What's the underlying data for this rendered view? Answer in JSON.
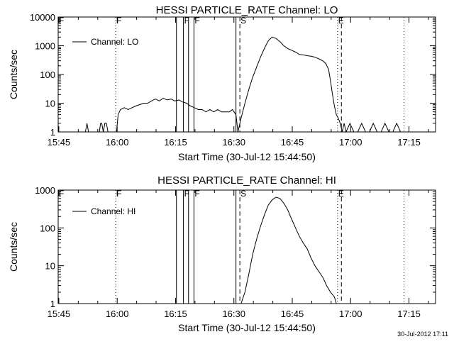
{
  "page": {
    "footer_timestamp": "30-Jul-2012 17:11"
  },
  "chart_data": [
    {
      "type": "line",
      "title": "HESSI PARTICLE_RATE Channel: LO",
      "xlabel": "Start Time (30-Jul-12 15:44:50)",
      "ylabel": "Counts/sec",
      "x_unit": "minutes after 15:44:50",
      "xlim": [
        0,
        97
      ],
      "ylim": [
        1,
        10000
      ],
      "yscale": "log",
      "x_ticks": [
        {
          "label": "15:45",
          "value": 0.17
        },
        {
          "label": "16:00",
          "value": 15.17
        },
        {
          "label": "16:15",
          "value": 30.17
        },
        {
          "label": "16:30",
          "value": 45.17
        },
        {
          "label": "16:45",
          "value": 60.17
        },
        {
          "label": "17:00",
          "value": 75.17
        },
        {
          "label": "17:15",
          "value": 90.17
        }
      ],
      "y_ticks": [
        {
          "label": "1",
          "value": 1
        },
        {
          "label": "10",
          "value": 10
        },
        {
          "label": "100",
          "value": 100
        },
        {
          "label": "1000",
          "value": 1000
        },
        {
          "label": "10000",
          "value": 10000
        }
      ],
      "legend": {
        "position": "top-left",
        "entries": [
          "Channel: LO"
        ]
      },
      "grid": false,
      "markers": [
        {
          "x": 0.0,
          "style": "solid",
          "label": "F"
        },
        {
          "x": 14.8,
          "style": "dotted",
          "label": "F"
        },
        {
          "x": 30.4,
          "style": "solid",
          "label": ""
        },
        {
          "x": 32.2,
          "style": "solid",
          "label": "F"
        },
        {
          "x": 33.5,
          "style": "solid",
          "label": ""
        },
        {
          "x": 34.9,
          "style": "solid",
          "label": "F"
        },
        {
          "x": 45.7,
          "style": "solid",
          "label": ""
        },
        {
          "x": 46.7,
          "style": "dashed",
          "label": "S"
        },
        {
          "x": 71.8,
          "style": "dotted",
          "label": "E"
        },
        {
          "x": 72.8,
          "style": "dashed",
          "label": ""
        },
        {
          "x": 88.9,
          "style": "dotted",
          "label": ""
        }
      ],
      "series": [
        {
          "name": "Channel: LO",
          "x": [
            7.0,
            7.4,
            7.8,
            10.6,
            10.9,
            11.2,
            11.6,
            12.0,
            12.4,
            12.8,
            13.2,
            14.0,
            14.6,
            15.0,
            15.4,
            16.0,
            17.0,
            18.0,
            19.0,
            20.0,
            21.0,
            22.0,
            23.0,
            24.0,
            25.0,
            26.0,
            27.0,
            28.0,
            29.0,
            30.0,
            31.0,
            32.0,
            33.0,
            34.0,
            35.0,
            36.0,
            37.0,
            38.0,
            39.0,
            40.0,
            41.0,
            42.0,
            43.0,
            44.0,
            44.8,
            45.2,
            45.7,
            46.2,
            47.0,
            48.0,
            49.0,
            50.0,
            51.0,
            52.0,
            53.0,
            54.0,
            55.0,
            56.0,
            57.0,
            58.0,
            59.0,
            60.0,
            61.0,
            62.0,
            63.0,
            64.0,
            65.0,
            66.0,
            67.0,
            68.0,
            68.8,
            69.5,
            70.0,
            70.5,
            71.0,
            71.5,
            72.0,
            72.5,
            73.0,
            73.5,
            74.0,
            75.0,
            76.0,
            77.0,
            78.0,
            79.0,
            80.0,
            81.0,
            82.0,
            83.0,
            84.0,
            85.0,
            86.0,
            87.0,
            88.0,
            89.0
          ],
          "y": [
            1,
            2,
            1,
            1,
            2,
            2,
            1,
            2,
            2,
            1,
            1,
            1,
            1,
            1,
            4,
            6,
            7,
            6,
            7,
            8,
            9,
            10,
            10,
            12,
            14,
            12,
            15,
            13,
            14,
            12,
            13,
            11,
            10,
            8,
            7,
            6,
            6,
            5,
            6,
            5,
            6,
            5,
            5,
            5,
            6,
            5,
            4,
            1,
            3,
            10,
            30,
            80,
            180,
            400,
            800,
            1500,
            2000,
            1800,
            1400,
            1000,
            800,
            700,
            600,
            500,
            480,
            450,
            430,
            400,
            350,
            300,
            240,
            150,
            60,
            20,
            8,
            4,
            3,
            2,
            1,
            2,
            1,
            2,
            1,
            1,
            2,
            1,
            1,
            2,
            1,
            1,
            2,
            1,
            1,
            2,
            1,
            1
          ]
        }
      ]
    },
    {
      "type": "line",
      "title": "HESSI PARTICLE_RATE Channel: HI",
      "xlabel": "Start Time (30-Jul-12 15:44:50)",
      "ylabel": "Counts/sec",
      "x_unit": "minutes after 15:44:50",
      "xlim": [
        0,
        97
      ],
      "ylim": [
        1,
        1000
      ],
      "yscale": "log",
      "x_ticks": [
        {
          "label": "15:45",
          "value": 0.17
        },
        {
          "label": "16:00",
          "value": 15.17
        },
        {
          "label": "16:15",
          "value": 30.17
        },
        {
          "label": "16:30",
          "value": 45.17
        },
        {
          "label": "16:45",
          "value": 60.17
        },
        {
          "label": "17:00",
          "value": 75.17
        },
        {
          "label": "17:15",
          "value": 90.17
        }
      ],
      "y_ticks": [
        {
          "label": "1",
          "value": 1
        },
        {
          "label": "10",
          "value": 10
        },
        {
          "label": "100",
          "value": 100
        },
        {
          "label": "1000",
          "value": 1000
        }
      ],
      "legend": {
        "position": "top-left",
        "entries": [
          "Channel: HI"
        ]
      },
      "grid": false,
      "markers": [
        {
          "x": 0.0,
          "style": "solid",
          "label": "F"
        },
        {
          "x": 14.8,
          "style": "dotted",
          "label": "F"
        },
        {
          "x": 30.4,
          "style": "solid",
          "label": ""
        },
        {
          "x": 32.2,
          "style": "solid",
          "label": "F"
        },
        {
          "x": 33.5,
          "style": "solid",
          "label": ""
        },
        {
          "x": 34.9,
          "style": "solid",
          "label": "F"
        },
        {
          "x": 45.7,
          "style": "solid",
          "label": ""
        },
        {
          "x": 46.7,
          "style": "dashed",
          "label": "S"
        },
        {
          "x": 71.8,
          "style": "dotted",
          "label": "E"
        },
        {
          "x": 72.8,
          "style": "dashed",
          "label": ""
        },
        {
          "x": 88.9,
          "style": "dotted",
          "label": ""
        }
      ],
      "series": [
        {
          "name": "Channel: HI",
          "x": [
            47.0,
            48.0,
            49.0,
            50.0,
            51.0,
            52.0,
            53.0,
            54.0,
            55.0,
            56.0,
            57.0,
            58.0,
            59.0,
            60.0,
            61.0,
            62.0,
            63.0,
            64.0,
            65.0,
            66.0,
            67.0,
            68.0,
            69.0,
            70.0,
            71.0,
            71.5
          ],
          "y": [
            1,
            2,
            6,
            20,
            50,
            110,
            220,
            400,
            550,
            650,
            600,
            450,
            300,
            170,
            100,
            60,
            40,
            28,
            16,
            10,
            7,
            5,
            3,
            2,
            1.5,
            1
          ]
        }
      ]
    }
  ]
}
